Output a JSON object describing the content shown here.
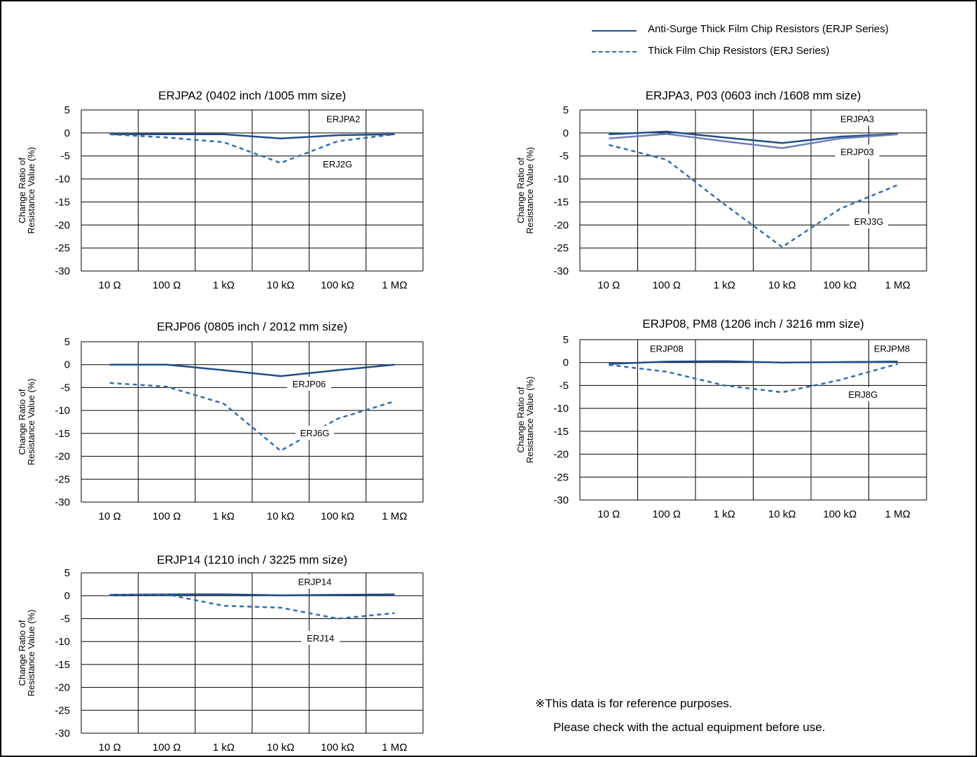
{
  "legend": [
    {
      "label": "Anti-Surge Thick Film Chip Resistors (ERJP Series)",
      "style": "solid",
      "color": "#1f4e8c"
    },
    {
      "label": "Thick Film Chip Resistors (ERJ Series)",
      "style": "dashed",
      "color": "#2e6db4"
    }
  ],
  "notes": {
    "line1": "※This data is for reference purposes.",
    "line2": "Please check with the actual equipment before use."
  },
  "colors": {
    "solid": "#1f4e8c",
    "solid_alt": "#6b7fb8",
    "dashed": "#2e6db4",
    "grid": "#000000"
  },
  "chart_data": [
    {
      "type": "line",
      "title": "ERJPA2 (0402 inch /1005 mm size)",
      "ylabel": [
        "Change Ratio of",
        "Resistance Value (%)"
      ],
      "ylim": [
        -30,
        5
      ],
      "yticks": [
        5,
        0,
        -5,
        -10,
        -15,
        -20,
        -25,
        -30
      ],
      "x_categories": [
        "10 Ω",
        "100 Ω",
        "1 kΩ",
        "10 kΩ",
        "100 kΩ",
        "1 MΩ"
      ],
      "series": [
        {
          "name": "ERJPA2",
          "style": "solid",
          "x": [
            1,
            2,
            3,
            4,
            5,
            6
          ],
          "y": [
            -0.3,
            -0.3,
            -0.3,
            -1.2,
            -0.5,
            -0.3
          ]
        },
        {
          "name": "ERJ2G",
          "style": "dashed",
          "x": [
            1,
            2,
            3,
            4,
            5,
            6
          ],
          "y": [
            -0.3,
            -1.0,
            -2.0,
            -6.5,
            -1.8,
            -0.3
          ]
        }
      ]
    },
    {
      "type": "line",
      "title": "ERJPA3, P03 (0603 inch /1608 mm size)",
      "ylabel": [
        "Change Ratio of",
        "Resistance Value (%)"
      ],
      "ylim": [
        -30,
        5
      ],
      "yticks": [
        5,
        0,
        -5,
        -10,
        -15,
        -20,
        -25,
        -30
      ],
      "x_categories": [
        "10 Ω",
        "100 Ω",
        "1 kΩ",
        "10 kΩ",
        "100 kΩ",
        "1 MΩ"
      ],
      "series": [
        {
          "name": "ERJPA3",
          "style": "solid",
          "x": [
            1,
            2,
            3,
            4,
            5,
            6
          ],
          "y": [
            -0.3,
            0.3,
            -1.0,
            -2.2,
            -0.8,
            -0.2
          ]
        },
        {
          "name": "ERJP03",
          "style": "solid_alt",
          "x": [
            1,
            2,
            3,
            4,
            5,
            6
          ],
          "y": [
            -1.2,
            -0.2,
            -1.8,
            -3.3,
            -1.2,
            -0.3
          ]
        },
        {
          "name": "ERJ3G",
          "style": "dashed",
          "x": [
            1,
            2,
            3,
            4,
            5,
            6
          ],
          "y": [
            -2.6,
            -5.8,
            -15.5,
            -24.8,
            -16.5,
            -11.3
          ]
        }
      ]
    },
    {
      "type": "line",
      "title": "ERJP06 (0805 inch / 2012 mm size)",
      "ylabel": [
        "Change Ratio of",
        "Resistance Value (%)"
      ],
      "ylim": [
        -30,
        5
      ],
      "yticks": [
        5,
        0,
        -5,
        -10,
        -15,
        -20,
        -25,
        -30
      ],
      "x_categories": [
        "10 Ω",
        "100 Ω",
        "1 kΩ",
        "10 kΩ",
        "100 kΩ",
        "1 MΩ"
      ],
      "series": [
        {
          "name": "ERJP06",
          "style": "solid",
          "x": [
            1,
            2,
            3,
            4,
            5,
            6
          ],
          "y": [
            0,
            0,
            -1.2,
            -2.5,
            -1.2,
            0
          ]
        },
        {
          "name": "ERJ6G",
          "style": "dashed",
          "x": [
            1,
            2,
            3,
            4,
            5,
            6
          ],
          "y": [
            -4.0,
            -4.8,
            -8.5,
            -18.8,
            -11.8,
            -8.0
          ]
        }
      ]
    },
    {
      "type": "line",
      "title": "ERJP08, PM8 (1206 inch / 3216 mm size)",
      "ylabel": [
        "Change Ratio of",
        "Resistance Value (%)"
      ],
      "ylim": [
        -30,
        5
      ],
      "yticks": [
        5,
        0,
        -5,
        -10,
        -15,
        -20,
        -25,
        -30
      ],
      "x_categories": [
        "10 Ω",
        "100 Ω",
        "1 kΩ",
        "10 kΩ",
        "100 kΩ",
        "1 MΩ"
      ],
      "series": [
        {
          "name": "ERJP08",
          "style": "solid",
          "x": [
            1,
            2,
            3,
            4,
            5,
            6
          ],
          "y": [
            -0.3,
            0.2,
            0.3,
            0,
            0.1,
            0.2
          ]
        },
        {
          "name": "ERJPM8",
          "style": "solid",
          "x": [
            5,
            6
          ],
          "y": [
            0.1,
            0.2
          ]
        },
        {
          "name": "ERJ8G",
          "style": "dashed",
          "x": [
            1,
            2,
            3,
            4,
            5,
            6
          ],
          "y": [
            -0.5,
            -2.0,
            -5.0,
            -6.5,
            -3.8,
            -0.3
          ]
        }
      ]
    },
    {
      "type": "line",
      "title": "ERJP14 (1210 inch / 3225 mm size)",
      "ylabel": [
        "Change Ratio of",
        "Resistance Value (%)"
      ],
      "ylim": [
        -30,
        5
      ],
      "yticks": [
        5,
        0,
        -5,
        -10,
        -15,
        -20,
        -25,
        -30
      ],
      "x_categories": [
        "10 Ω",
        "100 Ω",
        "1 kΩ",
        "10 kΩ",
        "100 kΩ",
        "1 MΩ"
      ],
      "series": [
        {
          "name": "ERJP14",
          "style": "solid",
          "x": [
            1,
            2,
            3,
            4,
            5,
            6
          ],
          "y": [
            0.2,
            0.3,
            0.3,
            0.1,
            0.2,
            0.3
          ]
        },
        {
          "name": "ERJ14",
          "style": "dashed",
          "x": [
            1,
            2,
            3,
            4,
            5,
            6
          ],
          "y": [
            0.2,
            0.3,
            -2.2,
            -2.6,
            -5.0,
            -3.8
          ]
        }
      ]
    }
  ]
}
